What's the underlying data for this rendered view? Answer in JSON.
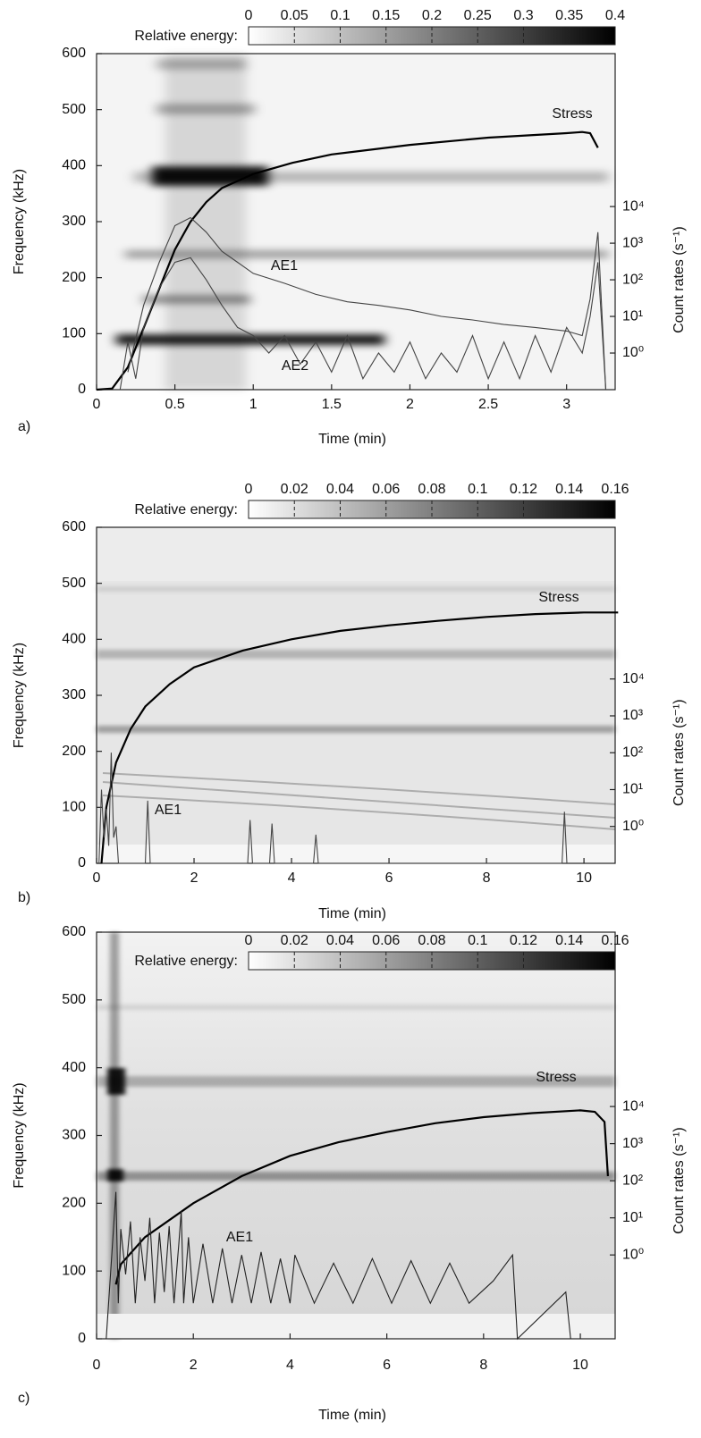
{
  "chart_data": [
    {
      "type": "spectrogram",
      "panel_label": "a)",
      "colorbar_label": "Relative energy:",
      "clim": [
        0,
        0.4
      ],
      "colorbar_ticks": [
        0,
        0.05,
        0.1,
        0.15,
        0.2,
        0.25,
        0.3,
        0.35,
        0.4
      ],
      "xlabel": "Time (min)",
      "ylabel": "Frequency (kHz)",
      "y2label": "Count rates (s⁻¹)",
      "xlim": [
        0,
        3.31
      ],
      "xticks": [
        0,
        0.5,
        1,
        1.5,
        2,
        2.5,
        3
      ],
      "ylim": [
        0,
        600
      ],
      "yticks": [
        0,
        100,
        200,
        300,
        400,
        500,
        600
      ],
      "y2scale": "log",
      "y2lim": [
        0.1,
        150000000
      ],
      "y2ticks": [
        {
          "value": 1,
          "label": "10⁰"
        },
        {
          "value": 10,
          "label": "10¹"
        },
        {
          "value": 100,
          "label": "10²"
        },
        {
          "value": 1000,
          "label": "10³"
        },
        {
          "value": 10000,
          "label": "10⁴"
        }
      ],
      "series": [
        {
          "name": "Stress",
          "color": "#000000",
          "x": [
            0,
            0.1,
            0.2,
            0.3,
            0.4,
            0.5,
            0.6,
            0.7,
            0.8,
            1.0,
            1.25,
            1.5,
            2.0,
            2.5,
            3.0,
            3.1,
            3.15,
            3.2
          ],
          "values": [
            0,
            2,
            40,
            110,
            180,
            250,
            300,
            335,
            360,
            385,
            405,
            420,
            437,
            450,
            458,
            460,
            458,
            432
          ]
        },
        {
          "name": "AE1",
          "color": "#444444",
          "axis": "y2",
          "x": [
            0.2,
            0.3,
            0.4,
            0.5,
            0.6,
            0.7,
            0.8,
            0.9,
            1.0,
            1.2,
            1.4,
            1.6,
            1.8,
            2.0,
            2.2,
            2.4,
            2.6,
            2.8,
            3.0,
            3.1,
            3.15,
            3.2,
            3.25
          ],
          "values": [
            0.3,
            20,
            300,
            3000,
            5000,
            2000,
            600,
            300,
            150,
            80,
            40,
            25,
            20,
            15,
            10,
            8,
            6,
            5,
            4,
            3,
            30,
            2000,
            0.1
          ]
        },
        {
          "name": "AE2",
          "color": "#444444",
          "axis": "y2",
          "x": [
            0.15,
            0.2,
            0.25,
            0.3,
            0.4,
            0.5,
            0.6,
            0.7,
            0.8,
            0.9,
            1.0,
            1.1,
            1.2,
            1.3,
            1.4,
            1.5,
            1.6,
            1.7,
            1.8,
            1.9,
            2.0,
            2.1,
            2.2,
            2.3,
            2.4,
            2.5,
            2.6,
            2.7,
            2.8,
            2.9,
            3.0,
            3.1,
            3.15,
            3.2,
            3.25
          ],
          "values": [
            0.1,
            2,
            0.2,
            5,
            60,
            300,
            400,
            100,
            20,
            5,
            3,
            1,
            3,
            0.5,
            2,
            0.3,
            3,
            0.2,
            1,
            0.3,
            2,
            0.2,
            1,
            0.3,
            3,
            0.2,
            2,
            0.2,
            3,
            0.3,
            5,
            1,
            10,
            300,
            0.1
          ]
        }
      ]
    },
    {
      "type": "spectrogram",
      "panel_label": "b)",
      "colorbar_label": "Relative energy:",
      "clim": [
        0,
        0.16
      ],
      "colorbar_ticks": [
        0,
        0.02,
        0.04,
        0.06,
        0.08,
        0.1,
        0.12,
        0.14,
        0.16
      ],
      "xlabel": "Time (min)",
      "ylabel": "Frequency (kHz)",
      "y2label": "Count rates (s⁻¹)",
      "xlim": [
        0,
        10.64
      ],
      "xticks": [
        0,
        2,
        4,
        6,
        8,
        10
      ],
      "ylim": [
        0,
        600
      ],
      "yticks": [
        0,
        100,
        200,
        300,
        400,
        500,
        600
      ],
      "y2scale": "log",
      "y2lim": [
        0.1,
        130000000
      ],
      "y2ticks": [
        {
          "value": 1,
          "label": "10⁰"
        },
        {
          "value": 10,
          "label": "10¹"
        },
        {
          "value": 100,
          "label": "10²"
        },
        {
          "value": 1000,
          "label": "10³"
        },
        {
          "value": 10000,
          "label": "10⁴"
        }
      ],
      "series": [
        {
          "name": "Stress",
          "color": "#000000",
          "x": [
            0.1,
            0.2,
            0.4,
            0.7,
            1,
            1.5,
            2,
            3,
            4,
            5,
            6,
            7,
            8,
            9,
            10,
            10.7
          ],
          "values": [
            0,
            100,
            180,
            240,
            280,
            320,
            350,
            380,
            400,
            415,
            425,
            433,
            440,
            445,
            448,
            448
          ]
        },
        {
          "name": "AE1",
          "color": "#444444",
          "axis": "y2",
          "x": [
            0.05,
            0.1,
            0.15,
            0.2,
            0.25,
            0.3,
            0.35,
            0.4,
            0.45,
            1.0,
            1.05,
            1.1,
            3.1,
            3.15,
            3.2,
            3.55,
            3.6,
            3.65,
            4.45,
            4.5,
            4.55,
            9.55,
            9.6,
            9.65
          ],
          "values": [
            0.1,
            10,
            0.5,
            3,
            0.3,
            100,
            0.5,
            1,
            0.1,
            0.1,
            5,
            0.1,
            0.1,
            1.5,
            0.1,
            0.1,
            1.2,
            0.1,
            0.1,
            0.6,
            0.1,
            0.1,
            2.5,
            0.1
          ]
        }
      ]
    },
    {
      "type": "spectrogram",
      "panel_label": "c)",
      "colorbar_label": "Relative energy:",
      "clim": [
        0,
        0.16
      ],
      "colorbar_ticks": [
        0,
        0.02,
        0.04,
        0.06,
        0.08,
        0.1,
        0.12,
        0.14,
        0.16
      ],
      "xlabel": "Time (min)",
      "ylabel": "Frequency (kHz)",
      "y2label": "Count rates (s⁻¹)",
      "xlim": [
        0,
        10.72
      ],
      "xticks": [
        0,
        2,
        4,
        6,
        8,
        10
      ],
      "ylim": [
        0,
        600
      ],
      "yticks": [
        0,
        100,
        200,
        300,
        400,
        500,
        600
      ],
      "y2scale": "log",
      "y2lim": [
        0.0055,
        500000000
      ],
      "y2ticks": [
        {
          "value": 1,
          "label": "10⁰"
        },
        {
          "value": 10,
          "label": "10¹"
        },
        {
          "value": 100,
          "label": "10²"
        },
        {
          "value": 1000,
          "label": "10³"
        },
        {
          "value": 10000,
          "label": "10⁴"
        }
      ],
      "series": [
        {
          "name": "Stress",
          "color": "#000000",
          "x": [
            0.4,
            0.5,
            1,
            2,
            3,
            4,
            5,
            6,
            7,
            8,
            9,
            10,
            10.3,
            10.5,
            10.57
          ],
          "values": [
            80,
            110,
            150,
            200,
            240,
            270,
            290,
            305,
            318,
            327,
            333,
            337,
            335,
            320,
            240
          ]
        },
        {
          "name": "AE1",
          "color": "#222222",
          "axis": "y2",
          "x": [
            0.2,
            0.3,
            0.4,
            0.45,
            0.5,
            0.6,
            0.7,
            0.8,
            0.9,
            1.0,
            1.1,
            1.2,
            1.3,
            1.4,
            1.5,
            1.6,
            1.7,
            1.75,
            1.8,
            1.9,
            2.0,
            2.2,
            2.4,
            2.6,
            2.8,
            3.0,
            3.2,
            3.4,
            3.6,
            3.8,
            4.0,
            4.1,
            4.5,
            4.9,
            5.3,
            5.7,
            6.1,
            6.5,
            6.9,
            7.3,
            7.7,
            8.2,
            8.6,
            8.7,
            9.7,
            9.8
          ],
          "values": [
            0.0055,
            0.5,
            50,
            0.05,
            5,
            0.3,
            8,
            0.05,
            3,
            0.2,
            10,
            0.05,
            4,
            0.1,
            6,
            0.05,
            2,
            15,
            0.05,
            3,
            0.05,
            2,
            0.05,
            1.5,
            0.05,
            1,
            0.05,
            1.2,
            0.05,
            0.8,
            0.05,
            1,
            0.05,
            0.6,
            0.05,
            0.8,
            0.05,
            0.7,
            0.05,
            0.6,
            0.05,
            0.2,
            1,
            0.0055,
            0.1,
            0.0055
          ]
        }
      ]
    }
  ]
}
